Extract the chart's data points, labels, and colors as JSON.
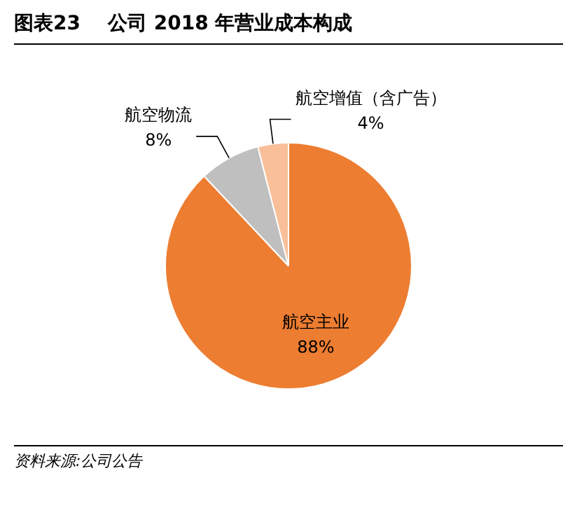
{
  "chart_data": {
    "type": "pie",
    "title": "图表23    公司 2018 年营业成本构成",
    "categories": [
      "航空主业",
      "航空物流",
      "航空增值（含广告）"
    ],
    "values": [
      88,
      8,
      4
    ],
    "colors": [
      "#ed7d31",
      "#bfbfbf",
      "#f8bf98"
    ],
    "value_labels": [
      "88%",
      "8%",
      "4%"
    ],
    "legend": false,
    "annotations": [
      "资料来源:公司公告"
    ]
  }
}
